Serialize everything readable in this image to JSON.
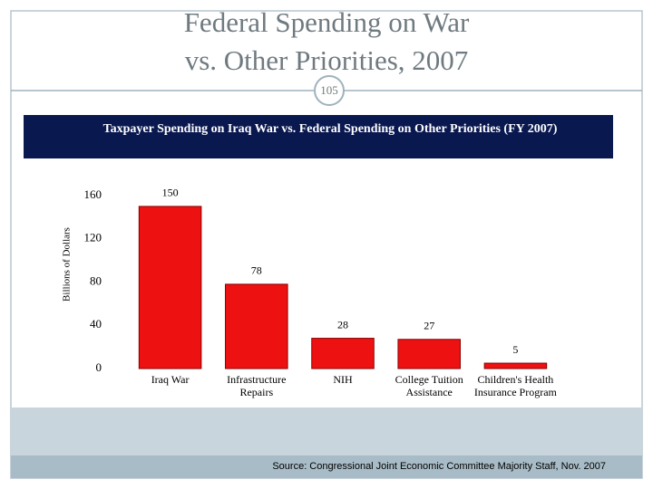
{
  "slide": {
    "title": [
      "Federal Spending on War",
      "vs. Other Priorities, 2007"
    ],
    "number": "105",
    "source": "Source: Congressional Joint Economic Committee Majority Staff, Nov. 2007"
  },
  "chart_data": {
    "type": "bar",
    "title": "Taxpayer Spending on Iraq War  vs. Federal Spending on Other Priorities (FY 2007)",
    "y_label": "Billions of Dollars",
    "categories": [
      "Iraq War",
      "Infrastructure\nRepairs",
      "NIH",
      "College Tuition\nAssistance",
      "Children's Health\nInsurance Program"
    ],
    "values": [
      150,
      78,
      28,
      27,
      5
    ],
    "color": "#ee1111",
    "ylim": [
      0,
      160
    ],
    "yticks": [
      0,
      40,
      80,
      120,
      160
    ],
    "grid": false
  }
}
